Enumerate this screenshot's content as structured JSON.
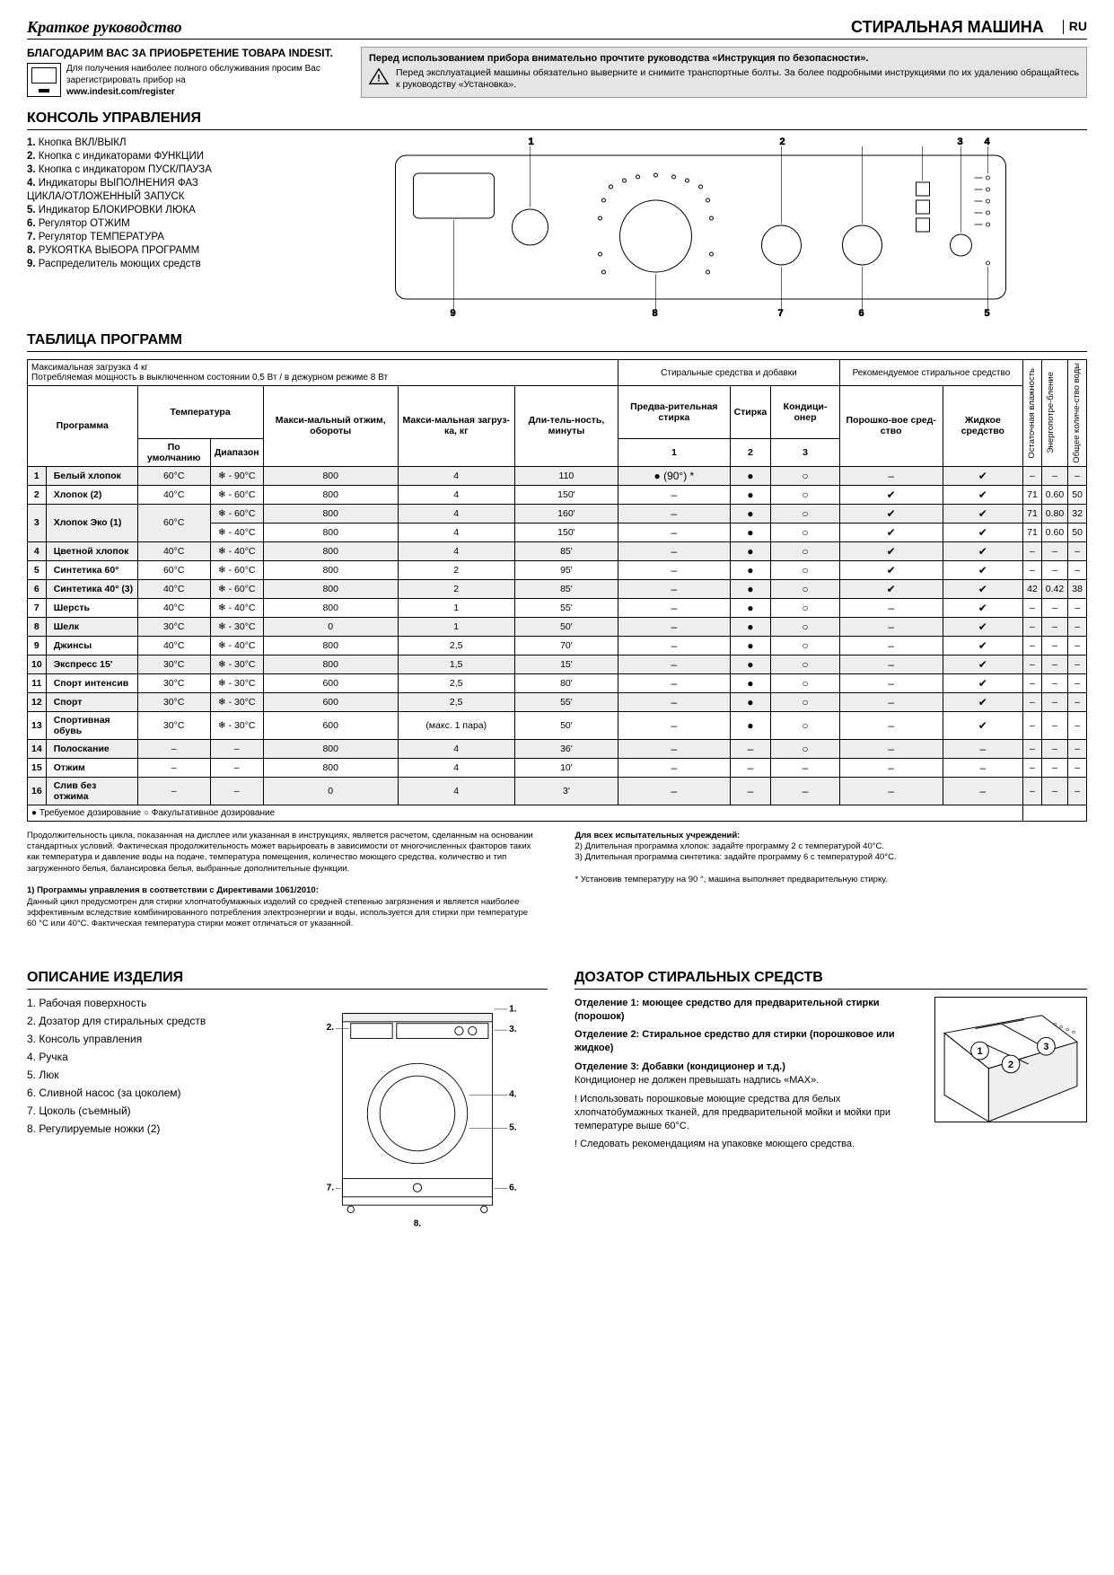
{
  "header": {
    "quick_guide": "Краткое руководство",
    "machine_title": "СТИРАЛЬНАЯ МАШИНА",
    "lang": "RU"
  },
  "thanks": {
    "title": "БЛАГОДАРИМ ВАС ЗА ПРИОБРЕТЕНИЕ ТОВАРА INDESIT.",
    "text1": "Для получения наиболее полного обслуживания просим Вас зарегистрировать прибор на",
    "url": "www.indesit.com/register"
  },
  "warning": {
    "title": "Перед использованием прибора внимательно прочтите руководства «Инструкция по безопасности».",
    "text": "Перед эксплуатацией машины обязательно выверните и снимите транспортные болты. За более подробными инструкциями по их удалению обращайтесь к руководству «Установка»."
  },
  "panel": {
    "title": "КОНСОЛЬ УПРАВЛЕНИЯ",
    "items": [
      "Кнопка ВКЛ/ВЫКЛ",
      "Кнопка с индикаторами ФУНКЦИИ",
      "Кнопка с индикатором ПУСК/ПАУЗА",
      "Индикаторы ВЫПОЛНЕНИЯ ФАЗ",
      "ЦИКЛА/ОТЛОЖЕННЫЙ ЗАПУСК",
      "Индикатор БЛОКИРОВКИ ЛЮКА",
      "Регулятор ОТЖИМ",
      "Регулятор ТЕМПЕРАТУРА",
      "РУКОЯТКА ВЫБОРА ПРОГРАММ",
      "Распределитель моющих средств"
    ]
  },
  "table": {
    "title": "ТАБЛИЦА ПРОГРАММ",
    "load_info": "Максимальная загрузка 4 кг",
    "power_info": "Потребляемая мощность в выключенном состоянии 0,5 Вт / в дежурном режиме 8 Вт",
    "hdr_prog": "Программа",
    "hdr_temp": "Температура",
    "hdr_temp_def": "По умолчанию",
    "hdr_temp_rng": "Диапазон",
    "hdr_spin": "Макси-мальный отжим, обороты",
    "hdr_load": "Макси-мальная загруз-ка, кг",
    "hdr_dur": "Дли-тель-ность, минуты",
    "hdr_det": "Стиральные средства и добавки",
    "hdr_rec": "Рекомендуемое стиральное средство",
    "hdr_prewash": "Предва-рительная стирка",
    "hdr_wash": "Стирка",
    "hdr_cond": "Кондици-онер",
    "hdr_powder": "Порошко-вое сред-ство",
    "hdr_liquid": "Жидкое средство",
    "hdr_c1": "1",
    "hdr_c2": "2",
    "hdr_c3": "3",
    "hdr_humid": "Остаточная влажность",
    "hdr_energy": "Энергопотре-бление",
    "hdr_water": "Общее количе-ство воды",
    "legend": "● Требуемое дозирование   ○ Факультативное дозирование",
    "rows": [
      {
        "n": "1",
        "name": "Белый хлопок",
        "td": "60°C",
        "tr": "❄ - 90°C",
        "spin": "800",
        "load": "4",
        "dur": "110",
        "p": "● (90°) *",
        "w": "●",
        "c": "○",
        "pw": "–",
        "lq": "✔",
        "hum": "–",
        "en": "–",
        "wt": "–"
      },
      {
        "n": "2",
        "name": "Хлопок (2)",
        "td": "40°C",
        "tr": "❄ - 60°C",
        "spin": "800",
        "load": "4",
        "dur": "150'",
        "p": "–",
        "w": "●",
        "c": "○",
        "pw": "✔",
        "lq": "✔",
        "hum": "71",
        "en": "0.60",
        "wt": "50"
      },
      {
        "n": "3",
        "name": "Хлопок Эко (1)",
        "td": "60°C",
        "tr": "❄ - 60°C",
        "spin": "800",
        "load": "4",
        "dur": "160'",
        "p": "–",
        "w": "●",
        "c": "○",
        "pw": "✔",
        "lq": "✔",
        "hum": "71",
        "en": "0.80",
        "wt": "32",
        "rowspan2": true,
        "tr2": "❄ - 40°C",
        "spin2": "800",
        "load2": "4",
        "dur2": "150'",
        "p2": "–",
        "w2": "●",
        "c2": "○",
        "pw2": "✔",
        "lq2": "✔",
        "hum2": "71",
        "en2": "0.60",
        "wt2": "50"
      },
      {
        "n": "4",
        "name": "Цветной хлопок",
        "td": "40°C",
        "tr": "❄ - 40°C",
        "spin": "800",
        "load": "4",
        "dur": "85'",
        "p": "–",
        "w": "●",
        "c": "○",
        "pw": "✔",
        "lq": "✔",
        "hum": "–",
        "en": "–",
        "wt": "–"
      },
      {
        "n": "5",
        "name": "Синтетика 60°",
        "td": "60°C",
        "tr": "❄ - 60°C",
        "spin": "800",
        "load": "2",
        "dur": "95'",
        "p": "–",
        "w": "●",
        "c": "○",
        "pw": "✔",
        "lq": "✔",
        "hum": "–",
        "en": "–",
        "wt": "–"
      },
      {
        "n": "6",
        "name": "Синтетика 40° (3)",
        "td": "40°C",
        "tr": "❄ - 60°C",
        "spin": "800",
        "load": "2",
        "dur": "85'",
        "p": "–",
        "w": "●",
        "c": "○",
        "pw": "✔",
        "lq": "✔",
        "hum": "42",
        "en": "0.42",
        "wt": "38"
      },
      {
        "n": "7",
        "name": "Шерсть",
        "td": "40°C",
        "tr": "❄ - 40°C",
        "spin": "800",
        "load": "1",
        "dur": "55'",
        "p": "–",
        "w": "●",
        "c": "○",
        "pw": "–",
        "lq": "✔",
        "hum": "–",
        "en": "–",
        "wt": "–"
      },
      {
        "n": "8",
        "name": "Шелк",
        "td": "30°C",
        "tr": "❄ - 30°C",
        "spin": "0",
        "load": "1",
        "dur": "50'",
        "p": "–",
        "w": "●",
        "c": "○",
        "pw": "–",
        "lq": "✔",
        "hum": "–",
        "en": "–",
        "wt": "–"
      },
      {
        "n": "9",
        "name": "Джинсы",
        "td": "40°C",
        "tr": "❄ - 40°C",
        "spin": "800",
        "load": "2,5",
        "dur": "70'",
        "p": "–",
        "w": "●",
        "c": "○",
        "pw": "–",
        "lq": "✔",
        "hum": "–",
        "en": "–",
        "wt": "–"
      },
      {
        "n": "10",
        "name": "Экспресс 15'",
        "td": "30°C",
        "tr": "❄ - 30°C",
        "spin": "800",
        "load": "1,5",
        "dur": "15'",
        "p": "–",
        "w": "●",
        "c": "○",
        "pw": "–",
        "lq": "✔",
        "hum": "–",
        "en": "–",
        "wt": "–"
      },
      {
        "n": "11",
        "name": "Спорт интенсив",
        "td": "30°C",
        "tr": "❄ - 30°C",
        "spin": "600",
        "load": "2,5",
        "dur": "80'",
        "p": "–",
        "w": "●",
        "c": "○",
        "pw": "–",
        "lq": "✔",
        "hum": "–",
        "en": "–",
        "wt": "–"
      },
      {
        "n": "12",
        "name": "Спорт",
        "td": "30°C",
        "tr": "❄ - 30°C",
        "spin": "600",
        "load": "2,5",
        "dur": "55'",
        "p": "–",
        "w": "●",
        "c": "○",
        "pw": "–",
        "lq": "✔",
        "hum": "–",
        "en": "–",
        "wt": "–"
      },
      {
        "n": "13",
        "name": "Спортивная обувь",
        "td": "30°C",
        "tr": "❄ - 30°C",
        "spin": "600",
        "load": "(макс. 1 пара)",
        "dur": "50'",
        "p": "–",
        "w": "●",
        "c": "○",
        "pw": "–",
        "lq": "✔",
        "hum": "–",
        "en": "–",
        "wt": "–"
      },
      {
        "n": "14",
        "name": "Полоскание",
        "td": "–",
        "tr": "–",
        "spin": "800",
        "load": "4",
        "dur": "36'",
        "p": "–",
        "w": "–",
        "c": "○",
        "pw": "–",
        "lq": "–",
        "hum": "–",
        "en": "–",
        "wt": "–"
      },
      {
        "n": "15",
        "name": "Отжим",
        "td": "–",
        "tr": "–",
        "spin": "800",
        "load": "4",
        "dur": "10'",
        "p": "–",
        "w": "–",
        "c": "–",
        "pw": "–",
        "lq": "–",
        "hum": "–",
        "en": "–",
        "wt": "–"
      },
      {
        "n": "16",
        "name": "Слив без отжима",
        "td": "–",
        "tr": "–",
        "spin": "0",
        "load": "4",
        "dur": "3'",
        "p": "–",
        "w": "–",
        "c": "–",
        "pw": "–",
        "lq": "–",
        "hum": "–",
        "en": "–",
        "wt": "–"
      }
    ]
  },
  "notes": {
    "para1": "Продолжительность цикла, показанная на дисплее или указанная в инструкциях, является расчетом, сделанным на основании стандартных условий. Фактическая продолжительность может варьировать в зависимости от многочисленных факторов таких как температура и давление воды на подаче, температура помещения, количество моющего средства, количество и тип загруженного белья, балансировка белья, выбранные дополнительные функции.",
    "para2_title": "1) Программы управления в соответствии с Директивами 1061/2010:",
    "para2": "Данный цикл предусмотрен для стирки хлопчатобумажных изделий со средней степенью загрязнения и является наиболее эффективным вследствие комбинированного потребления электроэнергии и воды, используется для стирки при температуре 60 °С или 40°С. Фактическая температура стирки может отличаться от указанной.",
    "testing_title": "Для всех испытательных учреждений:",
    "t2": "2)  Длительная программа хлопок: задайте программу 2 с температурой 40°C.",
    "t3": "3)  Длительная программа синтетика: задайте программу 6 с температурой 40°C.",
    "star": "* Установив температуру на 90 °, машина выполняет предварительную стирку."
  },
  "desc": {
    "title": "ОПИСАНИЕ ИЗДЕЛИЯ",
    "items": [
      "Рабочая поверхность",
      "Дозатор для стиральных средств",
      "Консоль управления",
      "Ручка",
      "Люк",
      "Сливной насос (за цоколем)",
      "Цоколь (съемный)",
      "Регулируемые ножки (2)"
    ]
  },
  "dose": {
    "title": "ДОЗАТОР СТИРАЛЬНЫХ СРЕДСТВ",
    "c1_title": "Отделение 1: моющее средство для предварительной стирки (порошок)",
    "c2_title": "Отделение 2: Стиральное средство для стирки (порошковое или жидкое)",
    "c3_title": "Отделение 3: Добавки (кондиционер и т.д.)",
    "c3_text": "Кондиционер не должен превышать надпись «MAX».",
    "warn1": "! Использовать порошковые моющие средства для белых хлопчатобумажных тканей, для предварительной мойки и мойки при температуре выше 60°C.",
    "warn2": "! Следовать рекомендациям на упаковке моющего средства."
  }
}
